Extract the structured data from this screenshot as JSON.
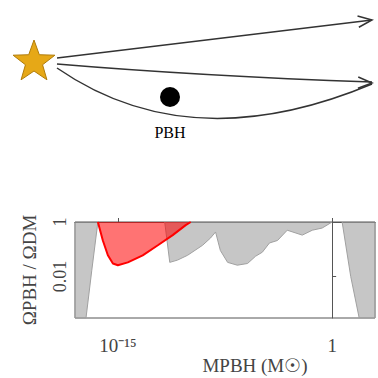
{
  "chart_data": {
    "type": "area",
    "log": true,
    "grid": false,
    "xlabel": "MPBH (M☉)",
    "ylabel": "ΩPBH / ΩDM",
    "xlim": [
      1e-18,
      1000
    ],
    "ylim": [
      0.0003,
      1
    ],
    "xticks": [
      {
        "value": 1e-15,
        "label": "10⁻¹⁵"
      },
      1
    ],
    "yticks": [
      0.01,
      1
    ],
    "series": [
      {
        "color": "#a0a0a0",
        "x": [
          1e-18,
          5.9e-18,
          1.5e-17,
          4e-17
        ],
        "values": [
          0.0003,
          0.0003,
          0.017,
          1
        ]
      },
      {
        "color": "#a0a0a0",
        "x": [
          1.9e-12,
          4.3e-12,
          1.5e-11,
          7.6e-11,
          8.5e-10,
          3.1e-09,
          6.9e-09,
          1.5e-08,
          4.8e-08,
          2.3e-07,
          1.2e-06,
          4.3e-06,
          1.3e-05,
          4.1e-05,
          0.00015,
          0.00072,
          0.0081,
          0.041,
          0.2,
          1
        ],
        "values": [
          1,
          0.033,
          0.04,
          0.06,
          0.14,
          0.26,
          0.43,
          0.09,
          0.033,
          0.026,
          0.03,
          0.055,
          0.078,
          0.17,
          0.21,
          0.5,
          0.33,
          0.5,
          0.6,
          1
        ]
      },
      {
        "color": "#a0a0a0",
        "x": [
          5,
          20,
          78,
          1000
        ],
        "values": [
          1,
          0.01,
          0.0003,
          0.0003
        ]
      },
      {
        "color": "#ff0000",
        "x": [
          4e-17,
          8.9e-17,
          2e-16,
          4.5e-16,
          1e-15,
          5e-15,
          5.5e-14,
          6.3e-13,
          6.9e-12,
          5.6e-11,
          1.26e-10
        ],
        "values": [
          1,
          0.21,
          0.06,
          0.03,
          0.026,
          0.033,
          0.06,
          0.14,
          0.33,
          0.77,
          1
        ]
      }
    ]
  },
  "diagram": {
    "label": "PBH"
  }
}
